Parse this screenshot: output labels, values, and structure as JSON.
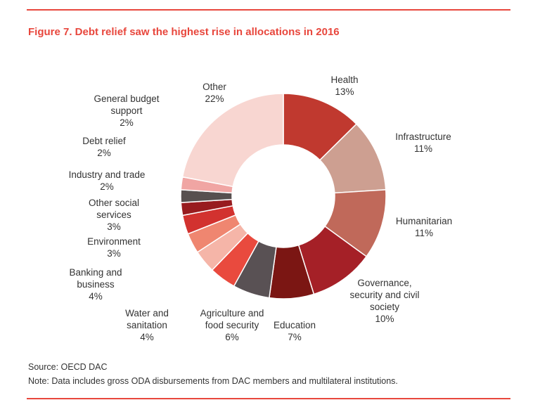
{
  "title": "Figure 7. Debt relief saw the highest rise in allocations in 2016",
  "source": "Source: OECD DAC",
  "note": "Note: Data includes gross ODA disbursements from DAC members and multilateral institutions.",
  "colors": {
    "accent": "#e8473d",
    "text": "#333333"
  },
  "chart_data": {
    "type": "pie",
    "donut": true,
    "legend": "none",
    "slices": [
      {
        "label": [
          "Health"
        ],
        "pct_text": "13%",
        "value": 12.6,
        "color": "#c0392f"
      },
      {
        "label": [
          "Infrastructure"
        ],
        "pct_text": "11%",
        "value": 11.4,
        "color": "#cd9f91"
      },
      {
        "label": [
          "Humanitarian"
        ],
        "pct_text": "11%",
        "value": 11.0,
        "color": "#c0695a"
      },
      {
        "label": [
          "Governance,",
          "security and civil",
          "society"
        ],
        "pct_text": "10%",
        "value": 10.2,
        "color": "#a52027"
      },
      {
        "label": [
          "Education"
        ],
        "pct_text": "7%",
        "value": 7.0,
        "color": "#7b1613"
      },
      {
        "label": [
          "Agriculture and",
          "food security"
        ],
        "pct_text": "6%",
        "value": 5.8,
        "color": "#595154"
      },
      {
        "label": [
          "Water and",
          "sanitation"
        ],
        "pct_text": "4%",
        "value": 4.2,
        "color": "#e94a3e"
      },
      {
        "label": [
          "Banking and",
          "business"
        ],
        "pct_text": "4%",
        "value": 3.6,
        "color": "#f5b5a8"
      },
      {
        "label": [
          "Environment"
        ],
        "pct_text": "3%",
        "value": 3.2,
        "color": "#ef8670"
      },
      {
        "label": [
          "Other social",
          "services"
        ],
        "pct_text": "3%",
        "value": 3.0,
        "color": "#d2322f"
      },
      {
        "label": [
          "Industry and trade"
        ],
        "pct_text": "2%",
        "value": 2.0,
        "color": "#981c1f"
      },
      {
        "label": [
          "Debt relief"
        ],
        "pct_text": "2%",
        "value": 2.0,
        "color": "#57504f"
      },
      {
        "label": [
          "General budget",
          "support"
        ],
        "pct_text": "2%",
        "value": 2.0,
        "color": "#f0a5a3"
      },
      {
        "label": [
          "Other"
        ],
        "pct_text": "22%",
        "value": 22.0,
        "color": "#f8d6d1"
      }
    ]
  }
}
